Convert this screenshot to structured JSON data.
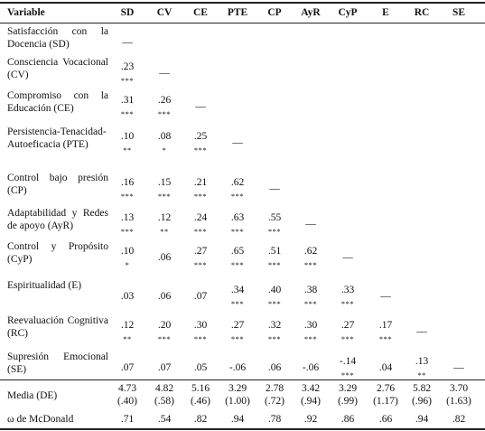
{
  "table": {
    "header": [
      "Variable",
      "SD",
      "CV",
      "CE",
      "PTE",
      "CP",
      "AyR",
      "CyP",
      "E",
      "RC",
      "SE"
    ],
    "rows": [
      {
        "label": "Satisfacción con la Docencia (SD)",
        "cells": [
          {
            "v": "—",
            "s": ""
          },
          {
            "v": "",
            "s": ""
          },
          {
            "v": "",
            "s": ""
          },
          {
            "v": "",
            "s": ""
          },
          {
            "v": "",
            "s": ""
          },
          {
            "v": "",
            "s": ""
          },
          {
            "v": "",
            "s": ""
          },
          {
            "v": "",
            "s": ""
          },
          {
            "v": "",
            "s": ""
          },
          {
            "v": "",
            "s": ""
          }
        ]
      },
      {
        "label": "Consciencia Vocacional (CV)",
        "cells": [
          {
            "v": ".23",
            "s": "***"
          },
          {
            "v": "—",
            "s": ""
          },
          {
            "v": "",
            "s": ""
          },
          {
            "v": "",
            "s": ""
          },
          {
            "v": "",
            "s": ""
          },
          {
            "v": "",
            "s": ""
          },
          {
            "v": "",
            "s": ""
          },
          {
            "v": "",
            "s": ""
          },
          {
            "v": "",
            "s": ""
          },
          {
            "v": "",
            "s": ""
          }
        ]
      },
      {
        "label": "Compromiso con la Educación (CE)",
        "cells": [
          {
            "v": ".31",
            "s": "***"
          },
          {
            "v": ".26",
            "s": "***"
          },
          {
            "v": "—",
            "s": ""
          },
          {
            "v": "",
            "s": ""
          },
          {
            "v": "",
            "s": ""
          },
          {
            "v": "",
            "s": ""
          },
          {
            "v": "",
            "s": ""
          },
          {
            "v": "",
            "s": ""
          },
          {
            "v": "",
            "s": ""
          },
          {
            "v": "",
            "s": ""
          }
        ]
      },
      {
        "label": "Persistencia-Tenacidad-Autoeficacia (PTE)",
        "cells": [
          {
            "v": ".10",
            "s": "**"
          },
          {
            "v": ".08",
            "s": "*"
          },
          {
            "v": ".25",
            "s": "***"
          },
          {
            "v": "—",
            "s": ""
          },
          {
            "v": "",
            "s": ""
          },
          {
            "v": "",
            "s": ""
          },
          {
            "v": "",
            "s": ""
          },
          {
            "v": "",
            "s": ""
          },
          {
            "v": "",
            "s": ""
          },
          {
            "v": "",
            "s": ""
          }
        ]
      },
      {
        "label": "Control bajo presión (CP)",
        "cells": [
          {
            "v": ".16",
            "s": "***"
          },
          {
            "v": ".15",
            "s": "***"
          },
          {
            "v": ".21",
            "s": "***"
          },
          {
            "v": ".62",
            "s": "***"
          },
          {
            "v": "—",
            "s": ""
          },
          {
            "v": "",
            "s": ""
          },
          {
            "v": "",
            "s": ""
          },
          {
            "v": "",
            "s": ""
          },
          {
            "v": "",
            "s": ""
          },
          {
            "v": "",
            "s": ""
          }
        ]
      },
      {
        "label": "Adaptabilidad y Redes de apoyo (AyR)",
        "cells": [
          {
            "v": ".13",
            "s": "***"
          },
          {
            "v": ".12",
            "s": "**"
          },
          {
            "v": ".24",
            "s": "***"
          },
          {
            "v": ".63",
            "s": "***"
          },
          {
            "v": ".55",
            "s": "***"
          },
          {
            "v": "—",
            "s": ""
          },
          {
            "v": "",
            "s": ""
          },
          {
            "v": "",
            "s": ""
          },
          {
            "v": "",
            "s": ""
          },
          {
            "v": "",
            "s": ""
          }
        ]
      },
      {
        "label": "Control y Propósito (CyP)",
        "cells": [
          {
            "v": ".10",
            "s": "*"
          },
          {
            "v": ".06",
            "s": ""
          },
          {
            "v": ".27",
            "s": "***"
          },
          {
            "v": ".65",
            "s": "***"
          },
          {
            "v": ".51",
            "s": "***"
          },
          {
            "v": ".62",
            "s": "***"
          },
          {
            "v": "—",
            "s": ""
          },
          {
            "v": "",
            "s": ""
          },
          {
            "v": "",
            "s": ""
          },
          {
            "v": "",
            "s": ""
          }
        ]
      },
      {
        "label": "Espiritualidad (E)",
        "cells": [
          {
            "v": ".03",
            "s": ""
          },
          {
            "v": ".06",
            "s": ""
          },
          {
            "v": ".07",
            "s": ""
          },
          {
            "v": ".34",
            "s": "***"
          },
          {
            "v": ".40",
            "s": "***"
          },
          {
            "v": ".38",
            "s": "***"
          },
          {
            "v": ".33",
            "s": "***"
          },
          {
            "v": "—",
            "s": ""
          },
          {
            "v": "",
            "s": ""
          },
          {
            "v": "",
            "s": ""
          }
        ]
      },
      {
        "label": "Reevaluación Cognitiva (RC)",
        "cells": [
          {
            "v": ".12",
            "s": "**"
          },
          {
            "v": ".20",
            "s": "***"
          },
          {
            "v": ".30",
            "s": "***"
          },
          {
            "v": ".27",
            "s": "***"
          },
          {
            "v": ".32",
            "s": "***"
          },
          {
            "v": ".30",
            "s": "***"
          },
          {
            "v": ".27",
            "s": "***"
          },
          {
            "v": ".17",
            "s": "***"
          },
          {
            "v": "—",
            "s": ""
          },
          {
            "v": "",
            "s": ""
          }
        ]
      },
      {
        "label": "Supresión Emocional (SE)",
        "cells": [
          {
            "v": ".07",
            "s": ""
          },
          {
            "v": ".07",
            "s": ""
          },
          {
            "v": ".05",
            "s": ""
          },
          {
            "v": "-.06",
            "s": ""
          },
          {
            "v": ".06",
            "s": ""
          },
          {
            "v": "-.06",
            "s": ""
          },
          {
            "v": "-.14",
            "s": "***"
          },
          {
            "v": ".04",
            "s": ""
          },
          {
            "v": ".13",
            "s": "**"
          },
          {
            "v": "—",
            "s": ""
          }
        ]
      }
    ],
    "means_row": {
      "label": "Media (DE)",
      "values": [
        {
          "m": "4.73",
          "sd": "(.40)"
        },
        {
          "m": "4.82",
          "sd": "(.58)"
        },
        {
          "m": "5.16",
          "sd": "(.46)"
        },
        {
          "m": "3.29",
          "sd": "(1.00)"
        },
        {
          "m": "2.78",
          "sd": "(.72)"
        },
        {
          "m": "3.42",
          "sd": "(.94)"
        },
        {
          "m": "3.29",
          "sd": "(.99)"
        },
        {
          "m": "2.76",
          "sd": "(1.17)"
        },
        {
          "m": "5.82",
          "sd": "(.96)"
        },
        {
          "m": "3.70",
          "sd": "(1.63)"
        }
      ]
    },
    "omega_row": {
      "label": "ω de McDonald",
      "values": [
        ".71",
        ".54",
        ".82",
        ".94",
        ".78",
        ".92",
        ".86",
        ".66",
        ".94",
        ".82"
      ]
    }
  }
}
